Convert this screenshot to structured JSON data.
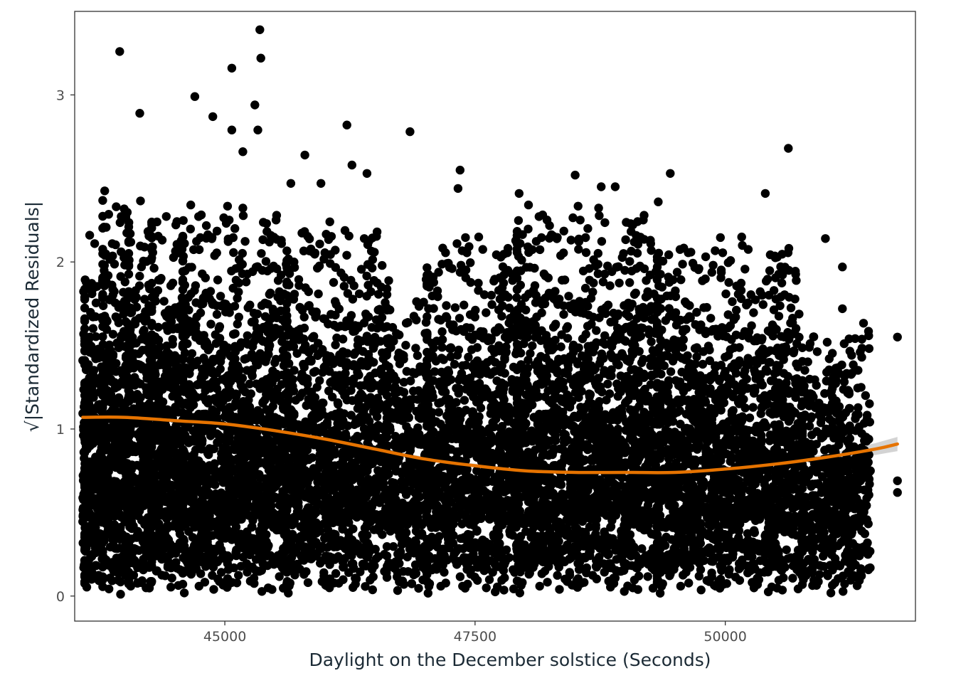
{
  "chart_data": {
    "type": "scatter",
    "title": "",
    "xlabel": "Daylight on the December solstice (Seconds)",
    "ylabel": "√|Standardized Residuals|",
    "xlim": [
      43500,
      51900
    ],
    "ylim": [
      -0.15,
      3.5
    ],
    "x_ticks": [
      {
        "value": 45000,
        "label": "45000"
      },
      {
        "value": 47500,
        "label": "47500"
      },
      {
        "value": 50000,
        "label": "50000"
      }
    ],
    "y_ticks": [
      {
        "value": 0,
        "label": "0"
      },
      {
        "value": 1,
        "label": "1"
      },
      {
        "value": 2,
        "label": "2"
      },
      {
        "value": 3,
        "label": "3"
      }
    ],
    "grid": false,
    "point_color": "#000000",
    "smooth_color": "#e67300",
    "band_color": "#c8c8c8",
    "outlier_points": [
      {
        "x": 43950,
        "y": 3.26
      },
      {
        "x": 44150,
        "y": 2.89
      },
      {
        "x": 44700,
        "y": 2.99
      },
      {
        "x": 44880,
        "y": 2.87
      },
      {
        "x": 45070,
        "y": 3.16
      },
      {
        "x": 45070,
        "y": 2.79
      },
      {
        "x": 45300,
        "y": 2.94
      },
      {
        "x": 45350,
        "y": 3.39
      },
      {
        "x": 45360,
        "y": 3.22
      },
      {
        "x": 45330,
        "y": 2.79
      },
      {
        "x": 45180,
        "y": 2.66
      },
      {
        "x": 46220,
        "y": 2.82
      },
      {
        "x": 46850,
        "y": 2.78
      },
      {
        "x": 50630,
        "y": 2.68
      },
      {
        "x": 48500,
        "y": 2.52
      },
      {
        "x": 49450,
        "y": 2.53
      },
      {
        "x": 50400,
        "y": 2.41
      },
      {
        "x": 47350,
        "y": 2.55
      },
      {
        "x": 51000,
        "y": 2.14
      },
      {
        "x": 51720,
        "y": 1.55
      },
      {
        "x": 51720,
        "y": 0.69
      },
      {
        "x": 51720,
        "y": 0.62
      },
      {
        "x": 51450,
        "y": 0.75
      },
      {
        "x": 43650,
        "y": 2.16
      },
      {
        "x": 43700,
        "y": 2.11
      },
      {
        "x": 43580,
        "y": 1.41
      },
      {
        "x": 43590,
        "y": 0.61
      },
      {
        "x": 45800,
        "y": 2.64
      },
      {
        "x": 46270,
        "y": 2.58
      },
      {
        "x": 46420,
        "y": 2.53
      },
      {
        "x": 45960,
        "y": 2.47
      },
      {
        "x": 45660,
        "y": 2.47
      },
      {
        "x": 47940,
        "y": 2.41
      },
      {
        "x": 48760,
        "y": 2.45
      },
      {
        "x": 48900,
        "y": 2.45
      },
      {
        "x": 49330,
        "y": 2.36
      },
      {
        "x": 51170,
        "y": 1.97
      },
      {
        "x": 51170,
        "y": 1.72
      },
      {
        "x": 47330,
        "y": 2.44
      },
      {
        "x": 47320,
        "y": 2.11
      }
    ],
    "bands": [
      {
        "x_from": 43580,
        "x_to": 43760,
        "y_max": 1.8,
        "density": 0.7
      },
      {
        "x_from": 43760,
        "x_to": 44020,
        "y_max": 2.35,
        "density": 0.9
      },
      {
        "x_from": 44020,
        "x_to": 44250,
        "y_max": 2.25,
        "density": 0.8
      },
      {
        "x_from": 44250,
        "x_to": 44560,
        "y_max": 2.2,
        "density": 0.9
      },
      {
        "x_from": 44560,
        "x_to": 45600,
        "y_max": 2.2,
        "density": 1.0
      },
      {
        "x_from": 45600,
        "x_to": 46600,
        "y_max": 2.1,
        "density": 0.85
      },
      {
        "x_from": 46600,
        "x_to": 47000,
        "y_max": 1.8,
        "density": 0.55
      },
      {
        "x_from": 47000,
        "x_to": 47900,
        "y_max": 2.0,
        "density": 0.85
      },
      {
        "x_from": 47900,
        "x_to": 49300,
        "y_max": 2.2,
        "density": 1.0
      },
      {
        "x_from": 49300,
        "x_to": 50750,
        "y_max": 2.0,
        "density": 0.95
      },
      {
        "x_from": 50750,
        "x_to": 51050,
        "y_max": 1.5,
        "density": 0.35
      },
      {
        "x_from": 51050,
        "x_to": 51450,
        "y_max": 1.5,
        "density": 0.45
      }
    ],
    "smooth_line": [
      {
        "x": 43580,
        "y": 1.07
      },
      {
        "x": 44000,
        "y": 1.07
      },
      {
        "x": 44500,
        "y": 1.05
      },
      {
        "x": 45000,
        "y": 1.03
      },
      {
        "x": 45500,
        "y": 0.99
      },
      {
        "x": 46000,
        "y": 0.94
      },
      {
        "x": 46500,
        "y": 0.88
      },
      {
        "x": 47000,
        "y": 0.82
      },
      {
        "x": 47500,
        "y": 0.78
      },
      {
        "x": 48000,
        "y": 0.75
      },
      {
        "x": 48500,
        "y": 0.74
      },
      {
        "x": 49000,
        "y": 0.74
      },
      {
        "x": 49500,
        "y": 0.74
      },
      {
        "x": 50000,
        "y": 0.76
      },
      {
        "x": 50500,
        "y": 0.79
      },
      {
        "x": 51000,
        "y": 0.83
      },
      {
        "x": 51500,
        "y": 0.88
      },
      {
        "x": 51720,
        "y": 0.91
      }
    ]
  }
}
